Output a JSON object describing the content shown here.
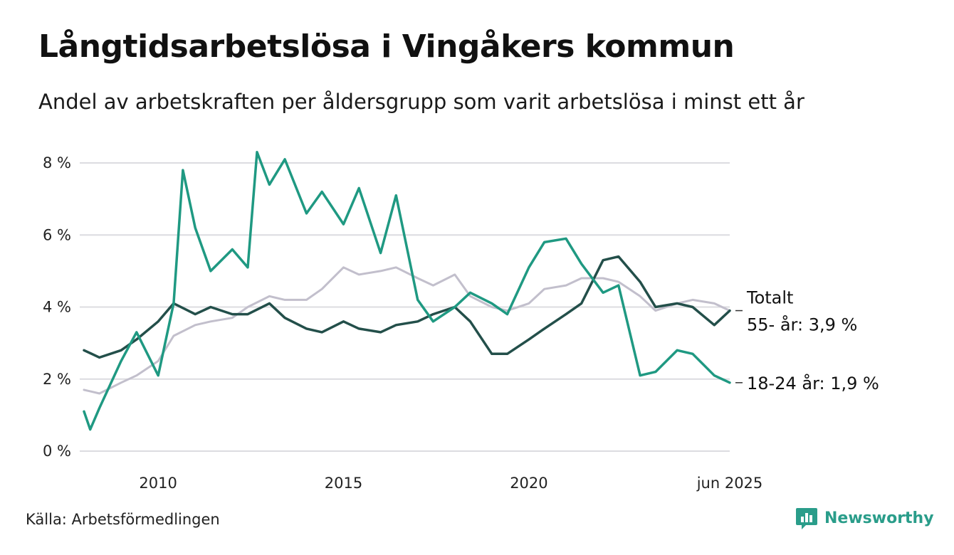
{
  "title": "Långtidsarbetslösa i Vingåkers kommun",
  "subtitle": "Andel av arbetskraften per åldersgrupp som varit arbetslösa i minst ett år",
  "source": "Källa: Arbetsförmedlingen",
  "brand": {
    "name": "Newsworthy",
    "icon": "bar-chart-icon",
    "color": "#2a9d8a"
  },
  "chart_data": {
    "type": "line",
    "unit": "%",
    "ylim": [
      0,
      8
    ],
    "yticks": [
      {
        "value": 0,
        "label": "0 %"
      },
      {
        "value": 2,
        "label": "2 %"
      },
      {
        "value": 4,
        "label": "4 %"
      },
      {
        "value": 6,
        "label": "6 %"
      },
      {
        "value": 8,
        "label": "8 %"
      }
    ],
    "xlim": [
      "2008-01",
      "2025-06"
    ],
    "xticks": [
      {
        "date": "2010-01",
        "label": "2010"
      },
      {
        "date": "2015-01",
        "label": "2015"
      },
      {
        "date": "2020-01",
        "label": "2020"
      },
      {
        "date": "2025-06",
        "label": "jun 2025"
      }
    ],
    "grid": true,
    "legend": "direct labels at line ends",
    "series": [
      {
        "name": "Totalt",
        "color": "#c2bfcc",
        "label_lines": [
          "Totalt"
        ],
        "points": [
          [
            "2008-01",
            1.7
          ],
          [
            "2008-06",
            1.6
          ],
          [
            "2009-01",
            1.9
          ],
          [
            "2009-06",
            2.1
          ],
          [
            "2010-01",
            2.5
          ],
          [
            "2010-06",
            3.2
          ],
          [
            "2011-01",
            3.5
          ],
          [
            "2011-06",
            3.6
          ],
          [
            "2012-01",
            3.7
          ],
          [
            "2012-06",
            4.0
          ],
          [
            "2013-01",
            4.3
          ],
          [
            "2013-06",
            4.2
          ],
          [
            "2014-01",
            4.2
          ],
          [
            "2014-06",
            4.5
          ],
          [
            "2015-01",
            5.1
          ],
          [
            "2015-06",
            4.9
          ],
          [
            "2016-01",
            5.0
          ],
          [
            "2016-06",
            5.1
          ],
          [
            "2017-01",
            4.8
          ],
          [
            "2017-06",
            4.6
          ],
          [
            "2018-01",
            4.9
          ],
          [
            "2018-06",
            4.3
          ],
          [
            "2019-01",
            4.0
          ],
          [
            "2019-06",
            3.9
          ],
          [
            "2020-01",
            4.1
          ],
          [
            "2020-06",
            4.5
          ],
          [
            "2021-01",
            4.6
          ],
          [
            "2021-06",
            4.8
          ],
          [
            "2022-01",
            4.8
          ],
          [
            "2022-06",
            4.7
          ],
          [
            "2023-01",
            4.3
          ],
          [
            "2023-06",
            3.9
          ],
          [
            "2024-01",
            4.1
          ],
          [
            "2024-06",
            4.2
          ],
          [
            "2025-01",
            4.1
          ],
          [
            "2025-06",
            3.9
          ]
        ]
      },
      {
        "name": "55- år",
        "color": "#234f4a",
        "label_lines": [
          "55- år: 3,9 %"
        ],
        "points": [
          [
            "2008-01",
            2.8
          ],
          [
            "2008-06",
            2.6
          ],
          [
            "2009-01",
            2.8
          ],
          [
            "2009-06",
            3.1
          ],
          [
            "2010-01",
            3.6
          ],
          [
            "2010-06",
            4.1
          ],
          [
            "2011-01",
            3.8
          ],
          [
            "2011-06",
            4.0
          ],
          [
            "2012-01",
            3.8
          ],
          [
            "2012-06",
            3.8
          ],
          [
            "2013-01",
            4.1
          ],
          [
            "2013-06",
            3.7
          ],
          [
            "2014-01",
            3.4
          ],
          [
            "2014-06",
            3.3
          ],
          [
            "2015-01",
            3.6
          ],
          [
            "2015-06",
            3.4
          ],
          [
            "2016-01",
            3.3
          ],
          [
            "2016-06",
            3.5
          ],
          [
            "2017-01",
            3.6
          ],
          [
            "2017-06",
            3.8
          ],
          [
            "2018-01",
            4.0
          ],
          [
            "2018-06",
            3.6
          ],
          [
            "2019-01",
            2.7
          ],
          [
            "2019-06",
            2.7
          ],
          [
            "2020-01",
            3.1
          ],
          [
            "2020-06",
            3.4
          ],
          [
            "2021-01",
            3.8
          ],
          [
            "2021-06",
            4.1
          ],
          [
            "2022-01",
            5.3
          ],
          [
            "2022-06",
            5.4
          ],
          [
            "2023-01",
            4.7
          ],
          [
            "2023-06",
            4.0
          ],
          [
            "2024-01",
            4.1
          ],
          [
            "2024-06",
            4.0
          ],
          [
            "2025-01",
            3.5
          ],
          [
            "2025-06",
            3.9
          ]
        ]
      },
      {
        "name": "18-24 år",
        "color": "#1f9982",
        "label_lines": [
          "18-24 år: 1,9 %"
        ],
        "points": [
          [
            "2008-01",
            1.1
          ],
          [
            "2008-03",
            0.6
          ],
          [
            "2008-06",
            1.2
          ],
          [
            "2009-01",
            2.5
          ],
          [
            "2009-06",
            3.3
          ],
          [
            "2010-01",
            2.1
          ],
          [
            "2010-06",
            4.1
          ],
          [
            "2010-09",
            7.8
          ],
          [
            "2011-01",
            6.2
          ],
          [
            "2011-06",
            5.0
          ],
          [
            "2012-01",
            5.6
          ],
          [
            "2012-06",
            5.1
          ],
          [
            "2012-09",
            8.3
          ],
          [
            "2013-01",
            7.4
          ],
          [
            "2013-06",
            8.1
          ],
          [
            "2014-01",
            6.6
          ],
          [
            "2014-06",
            7.2
          ],
          [
            "2015-01",
            6.3
          ],
          [
            "2015-06",
            7.3
          ],
          [
            "2016-01",
            5.5
          ],
          [
            "2016-06",
            7.1
          ],
          [
            "2017-01",
            4.2
          ],
          [
            "2017-06",
            3.6
          ],
          [
            "2018-01",
            4.0
          ],
          [
            "2018-06",
            4.4
          ],
          [
            "2019-01",
            4.1
          ],
          [
            "2019-06",
            3.8
          ],
          [
            "2020-01",
            5.1
          ],
          [
            "2020-06",
            5.8
          ],
          [
            "2021-01",
            5.9
          ],
          [
            "2021-06",
            5.2
          ],
          [
            "2022-01",
            4.4
          ],
          [
            "2022-06",
            4.6
          ],
          [
            "2023-01",
            2.1
          ],
          [
            "2023-06",
            2.2
          ],
          [
            "2024-01",
            2.8
          ],
          [
            "2024-06",
            2.7
          ],
          [
            "2025-01",
            2.1
          ],
          [
            "2025-06",
            1.9
          ]
        ]
      }
    ]
  }
}
